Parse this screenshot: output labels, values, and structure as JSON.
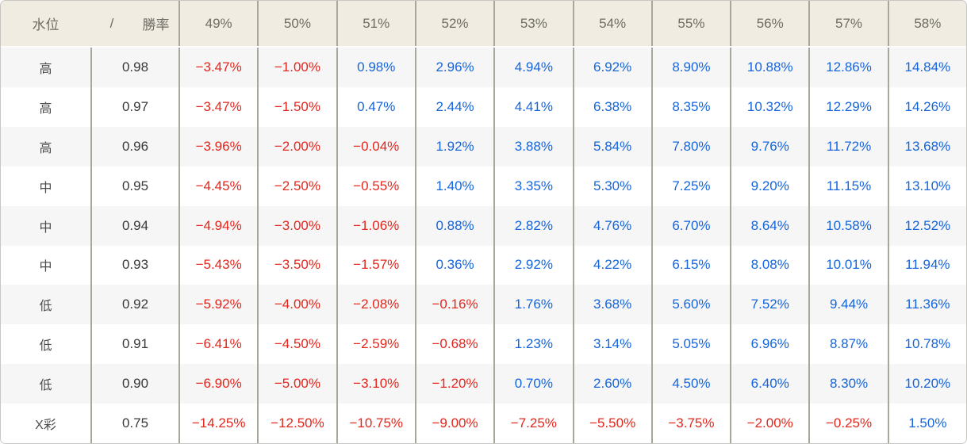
{
  "colors": {
    "header_background": "#f0ece1",
    "header_text": "#6e6c64",
    "divider": "#a9a69b",
    "outer_border": "#c7c6c2",
    "stripe_row": "#f6f6f6",
    "negative_value": "#e3271d",
    "positive_value": "#1565dd"
  },
  "chart_data": {
    "type": "table",
    "corner_header": {
      "level_label": "水位",
      "separator": "/",
      "odds_label": "勝率"
    },
    "columns": [
      "49%",
      "50%",
      "51%",
      "52%",
      "53%",
      "54%",
      "55%",
      "56%",
      "57%",
      "58%"
    ],
    "rows": [
      {
        "level": "高",
        "odds": "0.98",
        "values": [
          "−3.47%",
          "−1.00%",
          "0.98%",
          "2.96%",
          "4.94%",
          "6.92%",
          "8.90%",
          "10.88%",
          "12.86%",
          "14.84%"
        ]
      },
      {
        "level": "高",
        "odds": "0.97",
        "values": [
          "−3.47%",
          "−1.50%",
          "0.47%",
          "2.44%",
          "4.41%",
          "6.38%",
          "8.35%",
          "10.32%",
          "12.29%",
          "14.26%"
        ]
      },
      {
        "level": "高",
        "odds": "0.96",
        "values": [
          "−3.96%",
          "−2.00%",
          "−0.04%",
          "1.92%",
          "3.88%",
          "5.84%",
          "7.80%",
          "9.76%",
          "11.72%",
          "13.68%"
        ]
      },
      {
        "level": "中",
        "odds": "0.95",
        "values": [
          "−4.45%",
          "−2.50%",
          "−0.55%",
          "1.40%",
          "3.35%",
          "5.30%",
          "7.25%",
          "9.20%",
          "11.15%",
          "13.10%"
        ]
      },
      {
        "level": "中",
        "odds": "0.94",
        "values": [
          "−4.94%",
          "−3.00%",
          "−1.06%",
          "0.88%",
          "2.82%",
          "4.76%",
          "6.70%",
          "8.64%",
          "10.58%",
          "12.52%"
        ]
      },
      {
        "level": "中",
        "odds": "0.93",
        "values": [
          "−5.43%",
          "−3.50%",
          "−1.57%",
          "0.36%",
          "2.92%",
          "4.22%",
          "6.15%",
          "8.08%",
          "10.01%",
          "11.94%"
        ]
      },
      {
        "level": "低",
        "odds": "0.92",
        "values": [
          "−5.92%",
          "−4.00%",
          "−2.08%",
          "−0.16%",
          "1.76%",
          "3.68%",
          "5.60%",
          "7.52%",
          "9.44%",
          "11.36%"
        ]
      },
      {
        "level": "低",
        "odds": "0.91",
        "values": [
          "−6.41%",
          "−4.50%",
          "−2.59%",
          "−0.68%",
          "1.23%",
          "3.14%",
          "5.05%",
          "6.96%",
          "8.87%",
          "10.78%"
        ]
      },
      {
        "level": "低",
        "odds": "0.90",
        "values": [
          "−6.90%",
          "−5.00%",
          "−3.10%",
          "−1.20%",
          "0.70%",
          "2.60%",
          "4.50%",
          "6.40%",
          "8.30%",
          "10.20%"
        ]
      },
      {
        "level": "X彩",
        "odds": "0.75",
        "values": [
          "−14.25%",
          "−12.50%",
          "−10.75%",
          "−9.00%",
          "−7.25%",
          "−5.50%",
          "−3.75%",
          "−2.00%",
          "−0.25%",
          "1.50%"
        ]
      }
    ]
  }
}
